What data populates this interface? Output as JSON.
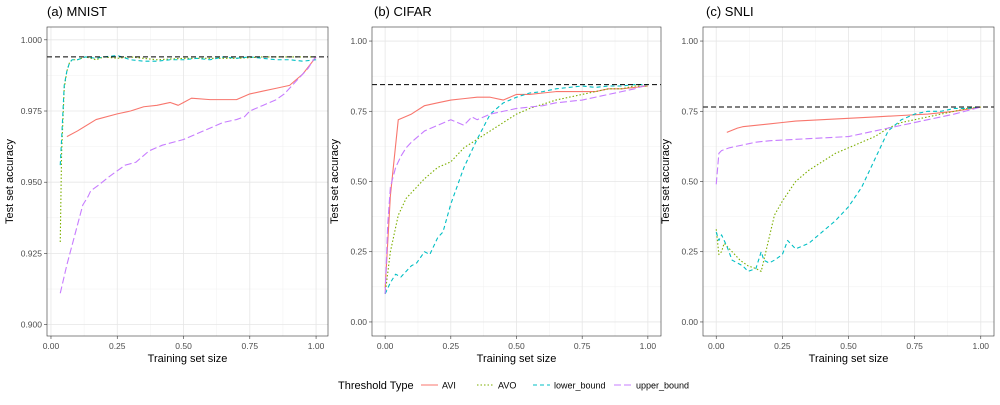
{
  "legend": {
    "title": "Threshold Type",
    "entries": [
      {
        "name": "AVI",
        "color": "#F8766D",
        "dash": "solid"
      },
      {
        "name": "AVO",
        "color": "#7CAE00",
        "dash": "dotted"
      },
      {
        "name": "lower_bound",
        "color": "#00BFC4",
        "dash": "dashed"
      },
      {
        "name": "upper_bound",
        "color": "#C77CFF",
        "dash": "longdash"
      }
    ]
  },
  "chart_data": [
    {
      "type": "line",
      "title": "(a) MNIST",
      "xlabel": "Training set size",
      "ylabel": "Test set accuracy",
      "xlim": [
        -0.015,
        1.045
      ],
      "ylim": [
        0.896,
        1.0045
      ],
      "xticks": [
        0,
        0.25,
        0.5,
        0.75,
        1
      ],
      "xtick_labels": [
        "0.00",
        "0.25",
        "0.50",
        "0.75",
        "1.00"
      ],
      "yticks": [
        0.9,
        0.925,
        0.95,
        0.975,
        1
      ],
      "ytick_labels": [
        "0.900",
        "0.925",
        "0.950",
        "0.975",
        "1.000"
      ],
      "hline": 0.994,
      "grid": true,
      "series": [
        {
          "name": "AVI",
          "x": [
            0.06,
            0.1,
            0.17,
            0.25,
            0.3,
            0.35,
            0.4,
            0.45,
            0.48,
            0.5,
            0.53,
            0.6,
            0.65,
            0.7,
            0.75,
            0.8,
            0.85,
            0.9,
            0.95,
            1.0
          ],
          "y": [
            0.966,
            0.968,
            0.972,
            0.974,
            0.975,
            0.9765,
            0.977,
            0.978,
            0.977,
            0.978,
            0.9795,
            0.979,
            0.979,
            0.979,
            0.981,
            0.982,
            0.983,
            0.984,
            0.988,
            0.994
          ]
        },
        {
          "name": "AVO",
          "x": [
            0.035,
            0.04,
            0.05,
            0.06,
            0.07,
            0.08,
            0.1,
            0.13,
            0.17,
            0.2,
            0.25,
            0.3,
            0.35,
            0.4,
            0.5,
            0.6,
            0.7,
            0.8,
            0.9,
            1.0
          ],
          "y": [
            0.929,
            0.96,
            0.983,
            0.989,
            0.992,
            0.993,
            0.993,
            0.994,
            0.993,
            0.994,
            0.9935,
            0.994,
            0.9935,
            0.993,
            0.9935,
            0.9935,
            0.9935,
            0.994,
            0.994,
            0.994
          ]
        },
        {
          "name": "lower_bound",
          "x": [
            0.035,
            0.04,
            0.05,
            0.06,
            0.07,
            0.08,
            0.1,
            0.13,
            0.17,
            0.2,
            0.25,
            0.3,
            0.35,
            0.4,
            0.45,
            0.5,
            0.55,
            0.6,
            0.65,
            0.7,
            0.75,
            0.8,
            0.85,
            0.9,
            0.95,
            1.0
          ],
          "y": [
            0.956,
            0.965,
            0.984,
            0.989,
            0.992,
            0.993,
            0.993,
            0.994,
            0.9935,
            0.994,
            0.9945,
            0.993,
            0.9925,
            0.9925,
            0.993,
            0.993,
            0.9935,
            0.993,
            0.994,
            0.9935,
            0.994,
            0.9935,
            0.993,
            0.993,
            0.9925,
            0.993
          ]
        },
        {
          "name": "upper_bound",
          "x": [
            0.035,
            0.06,
            0.08,
            0.1,
            0.12,
            0.14,
            0.15,
            0.18,
            0.22,
            0.28,
            0.32,
            0.37,
            0.42,
            0.5,
            0.55,
            0.6,
            0.65,
            0.7,
            0.73,
            0.75,
            0.8,
            0.85,
            0.88,
            0.9,
            0.92,
            0.95,
            0.97,
            0.99,
            1.0
          ],
          "y": [
            0.911,
            0.921,
            0.928,
            0.935,
            0.942,
            0.945,
            0.947,
            0.949,
            0.952,
            0.956,
            0.957,
            0.961,
            0.963,
            0.965,
            0.967,
            0.969,
            0.971,
            0.972,
            0.973,
            0.975,
            0.977,
            0.979,
            0.981,
            0.983,
            0.985,
            0.988,
            0.99,
            0.993,
            0.994
          ]
        }
      ]
    },
    {
      "type": "line",
      "title": "(b) CIFAR",
      "xlabel": "Training set size",
      "ylabel": "Test set accuracy",
      "xlim": [
        -0.05,
        1.05
      ],
      "ylim": [
        -0.05,
        1.05
      ],
      "xticks": [
        0,
        0.25,
        0.5,
        0.75,
        1
      ],
      "xtick_labels": [
        "0.00",
        "0.25",
        "0.50",
        "0.75",
        "1.00"
      ],
      "yticks": [
        0,
        0.25,
        0.5,
        0.75,
        1
      ],
      "ytick_labels": [
        "0.00",
        "0.25",
        "0.50",
        "0.75",
        "1.00"
      ],
      "hline": 0.845,
      "grid": true,
      "series": [
        {
          "name": "AVI",
          "x": [
            0.0,
            0.02,
            0.05,
            0.1,
            0.15,
            0.2,
            0.25,
            0.3,
            0.35,
            0.4,
            0.45,
            0.5,
            0.55,
            0.6,
            0.65,
            0.7,
            0.75,
            0.8,
            0.85,
            0.9,
            0.95,
            1.0
          ],
          "y": [
            0.12,
            0.45,
            0.72,
            0.74,
            0.77,
            0.78,
            0.79,
            0.795,
            0.8,
            0.8,
            0.79,
            0.81,
            0.81,
            0.815,
            0.82,
            0.82,
            0.82,
            0.82,
            0.83,
            0.83,
            0.835,
            0.84
          ]
        },
        {
          "name": "AVO",
          "x": [
            0.0,
            0.02,
            0.05,
            0.08,
            0.1,
            0.15,
            0.2,
            0.25,
            0.3,
            0.35,
            0.4,
            0.45,
            0.5,
            0.55,
            0.6,
            0.65,
            0.7,
            0.75,
            0.8,
            0.85,
            0.9,
            0.95,
            1.0
          ],
          "y": [
            0.1,
            0.25,
            0.38,
            0.44,
            0.46,
            0.51,
            0.55,
            0.57,
            0.62,
            0.65,
            0.68,
            0.71,
            0.74,
            0.76,
            0.775,
            0.79,
            0.8,
            0.81,
            0.82,
            0.83,
            0.83,
            0.84,
            0.84
          ]
        },
        {
          "name": "lower_bound",
          "x": [
            0.0,
            0.02,
            0.04,
            0.06,
            0.08,
            0.1,
            0.12,
            0.15,
            0.17,
            0.2,
            0.22,
            0.25,
            0.3,
            0.35,
            0.4,
            0.45,
            0.5,
            0.55,
            0.6,
            0.65,
            0.7,
            0.75,
            0.8,
            0.85,
            0.9,
            0.95,
            1.0
          ],
          "y": [
            0.1,
            0.14,
            0.17,
            0.16,
            0.18,
            0.2,
            0.21,
            0.25,
            0.24,
            0.3,
            0.32,
            0.42,
            0.55,
            0.65,
            0.74,
            0.78,
            0.8,
            0.815,
            0.82,
            0.83,
            0.835,
            0.84,
            0.835,
            0.84,
            0.84,
            0.845,
            0.845
          ]
        },
        {
          "name": "upper_bound",
          "x": [
            0.0,
            0.01,
            0.02,
            0.04,
            0.06,
            0.08,
            0.1,
            0.15,
            0.2,
            0.25,
            0.3,
            0.33,
            0.35,
            0.4,
            0.45,
            0.5,
            0.55,
            0.6,
            0.65,
            0.7,
            0.75,
            0.8,
            0.85,
            0.9,
            0.95,
            1.0
          ],
          "y": [
            0.1,
            0.35,
            0.48,
            0.55,
            0.59,
            0.62,
            0.64,
            0.68,
            0.7,
            0.72,
            0.7,
            0.73,
            0.72,
            0.74,
            0.75,
            0.76,
            0.765,
            0.77,
            0.78,
            0.785,
            0.79,
            0.8,
            0.81,
            0.82,
            0.83,
            0.845
          ]
        }
      ]
    },
    {
      "type": "line",
      "title": "(c) SNLI",
      "xlabel": "Training set size",
      "ylabel": "Test set accuracy",
      "xlim": [
        -0.05,
        1.05
      ],
      "ylim": [
        -0.05,
        1.05
      ],
      "xticks": [
        0,
        0.25,
        0.5,
        0.75,
        1
      ],
      "xtick_labels": [
        "0.00",
        "0.25",
        "0.50",
        "0.75",
        "1.00"
      ],
      "yticks": [
        0,
        0.25,
        0.5,
        0.75,
        1
      ],
      "ytick_labels": [
        "0.00",
        "0.25",
        "0.50",
        "0.75",
        "1.00"
      ],
      "hline": 0.765,
      "grid": true,
      "series": [
        {
          "name": "AVI",
          "x": [
            0.04,
            0.08,
            0.1,
            0.15,
            0.2,
            0.25,
            0.3,
            0.4,
            0.5,
            0.6,
            0.7,
            0.8,
            0.9,
            1.0
          ],
          "y": [
            0.675,
            0.69,
            0.695,
            0.7,
            0.705,
            0.71,
            0.715,
            0.72,
            0.725,
            0.73,
            0.735,
            0.74,
            0.75,
            0.765
          ]
        },
        {
          "name": "AVO",
          "x": [
            0.0,
            0.01,
            0.02,
            0.03,
            0.05,
            0.07,
            0.09,
            0.12,
            0.15,
            0.17,
            0.2,
            0.22,
            0.25,
            0.3,
            0.35,
            0.4,
            0.45,
            0.5,
            0.55,
            0.6,
            0.65,
            0.7,
            0.75,
            0.8,
            0.85,
            0.9,
            0.95,
            1.0
          ],
          "y": [
            0.33,
            0.24,
            0.25,
            0.28,
            0.26,
            0.24,
            0.22,
            0.2,
            0.19,
            0.18,
            0.3,
            0.38,
            0.43,
            0.5,
            0.54,
            0.57,
            0.6,
            0.62,
            0.64,
            0.66,
            0.69,
            0.71,
            0.72,
            0.73,
            0.74,
            0.75,
            0.76,
            0.765
          ]
        },
        {
          "name": "lower_bound",
          "x": [
            0.0,
            0.01,
            0.02,
            0.04,
            0.06,
            0.08,
            0.1,
            0.12,
            0.15,
            0.17,
            0.18,
            0.2,
            0.22,
            0.25,
            0.27,
            0.3,
            0.35,
            0.4,
            0.45,
            0.5,
            0.55,
            0.6,
            0.65,
            0.7,
            0.75,
            0.8,
            0.85,
            0.9,
            0.95,
            1.0
          ],
          "y": [
            0.32,
            0.29,
            0.31,
            0.27,
            0.22,
            0.21,
            0.2,
            0.18,
            0.19,
            0.25,
            0.22,
            0.21,
            0.22,
            0.24,
            0.29,
            0.26,
            0.28,
            0.32,
            0.36,
            0.41,
            0.48,
            0.58,
            0.68,
            0.72,
            0.74,
            0.75,
            0.75,
            0.76,
            0.76,
            0.765
          ]
        },
        {
          "name": "upper_bound",
          "x": [
            0.0,
            0.01,
            0.02,
            0.05,
            0.1,
            0.15,
            0.2,
            0.3,
            0.4,
            0.5,
            0.6,
            0.7,
            0.8,
            0.9,
            1.0
          ],
          "y": [
            0.49,
            0.6,
            0.61,
            0.62,
            0.63,
            0.64,
            0.645,
            0.65,
            0.655,
            0.66,
            0.68,
            0.7,
            0.72,
            0.74,
            0.765
          ]
        }
      ]
    }
  ]
}
